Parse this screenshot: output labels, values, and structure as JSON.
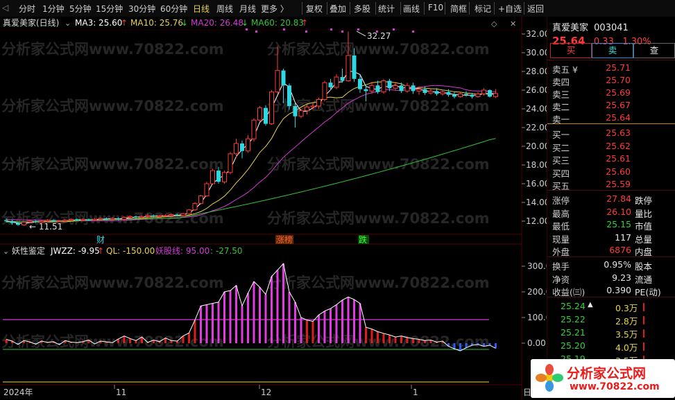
{
  "toolbar": {
    "periods": [
      "分时",
      "1分钟",
      "5分钟",
      "15分钟",
      "30分钟",
      "60分钟",
      "日线",
      "周线",
      "月线",
      "更多 〉"
    ],
    "active_period": "日线",
    "tools": [
      "复权",
      "叠加",
      "多股",
      "统计",
      "画线",
      "F10",
      "简框",
      "标记",
      "+自选",
      "返回"
    ]
  },
  "chart_header": {
    "title": "真爱美家(日线)",
    "ma3": "MA3: 25.60",
    "ma10": "MA10: 25.76",
    "ma20": "MA20: 26.48",
    "ma60": "MA60: 20.83",
    "up_arrow": "↑",
    "down_arrow": "↓"
  },
  "main_chart": {
    "high_label": "32.27",
    "low_label": "← 11.51",
    "y_ticks": [
      "32.00",
      "30.00",
      "28.00",
      "26.00",
      "24.00",
      "22.00",
      "20.00",
      "18.00",
      "16.00",
      "14.00",
      "12.00"
    ],
    "markers": [
      "财",
      "涨榜",
      "跌"
    ]
  },
  "indicator_header": {
    "name": "妖性鉴定",
    "jwzz": "JWZZ: -9.95",
    "jwzz_arrow": "↑",
    "ql": "QL: -150.00",
    "yao": "妖股线: 95.00",
    "extra": ": -27.50"
  },
  "indicator_chart": {
    "y_ticks": [
      "300.0",
      "200.0",
      "100.0",
      "0.00"
    ]
  },
  "x_axis": {
    "labels": [
      "2024年",
      "11",
      "12",
      "1"
    ],
    "corner": "日"
  },
  "watermark": {
    "text": "分析家公式网www.70822.com",
    "logo_title": "分析家公式网",
    "logo_url": "www.70822.com"
  },
  "colors": {
    "up": "#ff3a3a",
    "down": "#2fd8e0",
    "ma3": "#ffffff",
    "ma10": "#e8d24a",
    "ma20": "#d43ad4",
    "ma60": "#35c435"
  },
  "quote": {
    "name": "真爱美家",
    "code": "003041",
    "price": "25.64",
    "change": "0.33",
    "pct": "1.30%",
    "buy_btn": "买",
    "sell_btn": "卖",
    "query_btn": "查",
    "asks": [
      {
        "label": "卖五 ¥",
        "price": "25.71"
      },
      {
        "label": "卖四",
        "price": "25.70"
      },
      {
        "label": "卖三",
        "price": "25.69"
      },
      {
        "label": "卖二",
        "price": "25.67"
      },
      {
        "label": "卖一",
        "price": "25.64"
      }
    ],
    "bids": [
      {
        "label": "买一",
        "price": "25.63"
      },
      {
        "label": "买二",
        "price": "25.62"
      },
      {
        "label": "买三",
        "price": "25.61"
      },
      {
        "label": "买四",
        "price": "25.60"
      },
      {
        "label": "买五",
        "price": "25.59"
      }
    ],
    "stats": [
      {
        "l1": "涨停",
        "v1": "27.84",
        "l2": "跌停",
        "c": "red"
      },
      {
        "l1": "最高",
        "v1": "26.10",
        "l2": "量比",
        "c": "red"
      },
      {
        "l1": "最低",
        "v1": "25.15",
        "l2": "市值",
        "c": "green"
      },
      {
        "l1": "现量",
        "v1": "117",
        "l2": "总量",
        "c": "white"
      },
      {
        "l1": "外盘",
        "v1": "6876",
        "l2": "内盘",
        "c": "red"
      }
    ],
    "stats2": [
      {
        "l1": "换手",
        "v1": "0.95%",
        "l2": "股本"
      },
      {
        "l1": "净资",
        "v1": "9.23",
        "l2": "流通"
      },
      {
        "l1": "收益(㈢)",
        "v1": "0.390",
        "l2": "PE(动)"
      }
    ],
    "ticks": [
      {
        "p": "25.24",
        "arrow": "▲",
        "v": "0.3万",
        "pc": "green"
      },
      {
        "p": "25.22",
        "arrow": "",
        "v": "2.8万",
        "pc": "green"
      },
      {
        "p": "25.21",
        "arrow": "",
        "v": "3.5万",
        "pc": "green"
      },
      {
        "p": "25.20",
        "arrow": "",
        "v": "4.0万",
        "pc": "green"
      },
      {
        "p": "25.19",
        "arrow": "",
        "v": "3.5万",
        "pc": "green"
      }
    ]
  }
}
